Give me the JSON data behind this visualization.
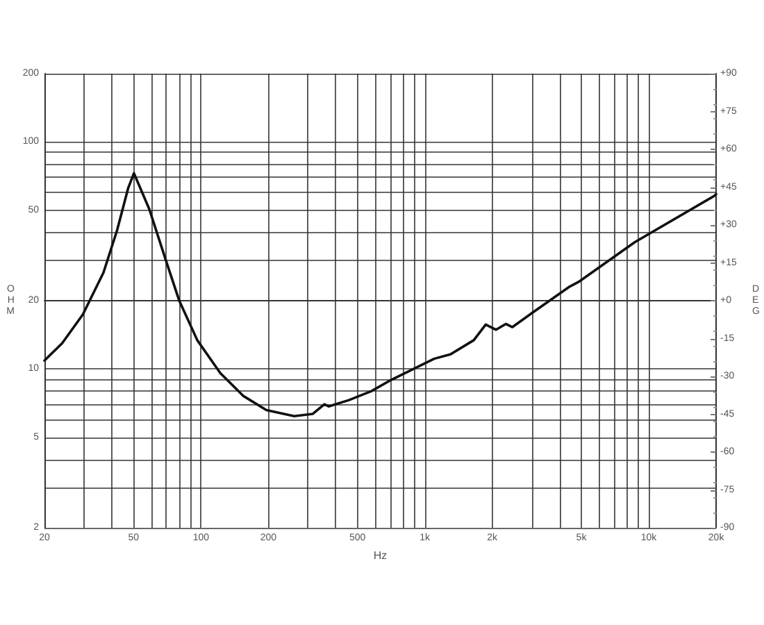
{
  "chart_data": {
    "type": "line",
    "xlabel": "Hz",
    "ylabel": "OHM",
    "y2label": "DEG",
    "log": "xy",
    "grid": true,
    "marker": "none",
    "line_style": "solid",
    "xlim": [
      20,
      20000
    ],
    "xticks": [
      {
        "value": 20,
        "label": "20"
      },
      {
        "value": 30,
        "label": null
      },
      {
        "value": 40,
        "label": null
      },
      {
        "value": 50,
        "label": "50"
      },
      {
        "value": 60,
        "label": null
      },
      {
        "value": 70,
        "label": null
      },
      {
        "value": 80,
        "label": null
      },
      {
        "value": 90,
        "label": null
      },
      {
        "value": 100,
        "label": "100"
      },
      {
        "value": 200,
        "label": "200"
      },
      {
        "value": 300,
        "label": null
      },
      {
        "value": 400,
        "label": null
      },
      {
        "value": 500,
        "label": "500"
      },
      {
        "value": 600,
        "label": null
      },
      {
        "value": 700,
        "label": null
      },
      {
        "value": 800,
        "label": null
      },
      {
        "value": 900,
        "label": null
      },
      {
        "value": 1000,
        "label": "1k"
      },
      {
        "value": 2000,
        "label": "2k"
      },
      {
        "value": 3000,
        "label": null
      },
      {
        "value": 4000,
        "label": null
      },
      {
        "value": 5000,
        "label": "5k"
      },
      {
        "value": 6000,
        "label": null
      },
      {
        "value": 7000,
        "label": null
      },
      {
        "value": 8000,
        "label": null
      },
      {
        "value": 9000,
        "label": null
      },
      {
        "value": 10000,
        "label": "10k"
      },
      {
        "value": 20000,
        "label": "20k"
      }
    ],
    "ylim": [
      2,
      200
    ],
    "yticks": [
      {
        "value": 2,
        "label": "2"
      },
      {
        "value": 3,
        "label": null
      },
      {
        "value": 4,
        "label": null
      },
      {
        "value": 5,
        "label": "5"
      },
      {
        "value": 6,
        "label": null
      },
      {
        "value": 7,
        "label": null
      },
      {
        "value": 8,
        "label": null
      },
      {
        "value": 9,
        "label": null
      },
      {
        "value": 10,
        "label": "10"
      },
      {
        "value": 20,
        "label": "20"
      },
      {
        "value": 30,
        "label": null
      },
      {
        "value": 40,
        "label": null
      },
      {
        "value": 50,
        "label": "50"
      },
      {
        "value": 60,
        "label": null
      },
      {
        "value": 70,
        "label": null
      },
      {
        "value": 80,
        "label": null
      },
      {
        "value": 90,
        "label": null
      },
      {
        "value": 100,
        "label": "100"
      },
      {
        "value": 200,
        "label": "200"
      }
    ],
    "y2lim": [
      -90,
      90
    ],
    "y2ticks": [
      {
        "value": -90,
        "label": "-90"
      },
      {
        "value": -75,
        "label": "-75"
      },
      {
        "value": -60,
        "label": "-60"
      },
      {
        "value": -45,
        "label": "-45"
      },
      {
        "value": -30,
        "label": "-30"
      },
      {
        "value": -15,
        "label": "-15"
      },
      {
        "value": 0,
        "label": "+0"
      },
      {
        "value": 15,
        "label": "+15"
      },
      {
        "value": 30,
        "label": "+30"
      },
      {
        "value": 45,
        "label": "+45"
      },
      {
        "value": 60,
        "label": "+60"
      },
      {
        "value": 75,
        "label": "+75"
      },
      {
        "value": 90,
        "label": "+90"
      }
    ],
    "series": [
      {
        "color": "#111111",
        "x": [
          20,
          24,
          29.7,
          36.7,
          42.2,
          47.3,
          50.2,
          58.8,
          69.8,
          80,
          96.3,
          122,
          155,
          196,
          261,
          316,
          356,
          372,
          458,
          578,
          707,
          1100,
          1300,
          1654,
          1870,
          2080,
          2300,
          2460,
          2900,
          4440,
          4860,
          8660,
          19700,
          20000
        ],
        "values": [
          10.9,
          13,
          17.4,
          26.6,
          40.8,
          62.6,
          72.8,
          50.6,
          30,
          20,
          13.4,
          9.6,
          7.6,
          6.6,
          6.2,
          6.35,
          7.0,
          6.85,
          7.3,
          8.0,
          8.96,
          11.1,
          11.6,
          13.4,
          15.7,
          14.9,
          15.8,
          15.3,
          17.2,
          23.1,
          24.2,
          36.2,
          58,
          59
        ]
      }
    ]
  }
}
